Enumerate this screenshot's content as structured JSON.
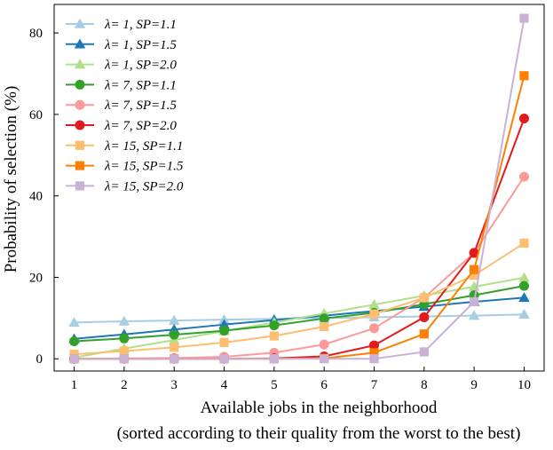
{
  "chart_data": {
    "type": "line",
    "xlabel": "Available jobs in the neighborhood",
    "xlabel_sub": "(sorted according to their quality from the worst to the best)",
    "ylabel": "Probability of selection (%)",
    "x": [
      1,
      2,
      3,
      4,
      5,
      6,
      7,
      8,
      9,
      10
    ],
    "xlim": [
      0.6,
      10.4
    ],
    "ylim": [
      -3,
      87
    ],
    "xticks": [
      "1",
      "2",
      "3",
      "4",
      "5",
      "6",
      "7",
      "8",
      "9",
      "10"
    ],
    "yticks": [
      "0",
      "20",
      "40",
      "60",
      "80"
    ],
    "ytick_values": [
      0,
      20,
      40,
      60,
      80
    ],
    "grid": false,
    "legend_position": "top-left",
    "series": [
      {
        "name": "λ= 1, SP=1.1",
        "color": "#a6cee3",
        "marker": "triangle",
        "values": [
          8.9,
          9.2,
          9.4,
          9.6,
          9.8,
          10.0,
          10.2,
          10.4,
          10.6,
          10.9
        ]
      },
      {
        "name": "λ= 1, SP=1.5",
        "color": "#1f78b4",
        "marker": "triangle",
        "values": [
          4.9,
          6.0,
          7.2,
          8.4,
          9.5,
          10.6,
          11.7,
          12.8,
          14.0,
          15.0
        ]
      },
      {
        "name": "λ= 1, SP=2.0",
        "color": "#b2df8a",
        "marker": "triangle",
        "values": [
          0.3,
          2.5,
          4.6,
          6.8,
          8.9,
          11.1,
          13.3,
          15.5,
          17.7,
          19.9
        ]
      },
      {
        "name": "λ= 7, SP=1.1",
        "color": "#33a02c",
        "marker": "circle",
        "values": [
          4.3,
          5.0,
          5.9,
          6.9,
          8.2,
          9.9,
          11.3,
          13.4,
          15.6,
          17.9
        ]
      },
      {
        "name": "λ= 7, SP=1.5",
        "color": "#fb9a99",
        "marker": "circle",
        "values": [
          0.0,
          0.1,
          0.2,
          0.5,
          1.5,
          3.5,
          7.5,
          15.0,
          26.0,
          44.7
        ]
      },
      {
        "name": "λ= 7, SP=2.0",
        "color": "#e31a1c",
        "marker": "circle",
        "values": [
          0.0,
          0.0,
          0.0,
          0.0,
          0.1,
          0.6,
          3.3,
          10.2,
          26.0,
          59.0
        ]
      },
      {
        "name": "λ= 15, SP=1.1",
        "color": "#fdbf6f",
        "marker": "square",
        "values": [
          1.1,
          1.9,
          2.8,
          4.0,
          5.6,
          7.9,
          11.0,
          15.0,
          20.5,
          28.4
        ]
      },
      {
        "name": "λ= 15, SP=1.5",
        "color": "#ff7f00",
        "marker": "square",
        "values": [
          0.0,
          0.0,
          0.0,
          0.0,
          0.0,
          0.1,
          1.5,
          6.1,
          21.9,
          69.5
        ]
      },
      {
        "name": "λ= 15, SP=2.0",
        "color": "#cab2d6",
        "marker": "square",
        "values": [
          0.0,
          0.0,
          0.0,
          0.0,
          0.0,
          0.0,
          0.0,
          1.7,
          14.0,
          83.6
        ]
      }
    ]
  }
}
